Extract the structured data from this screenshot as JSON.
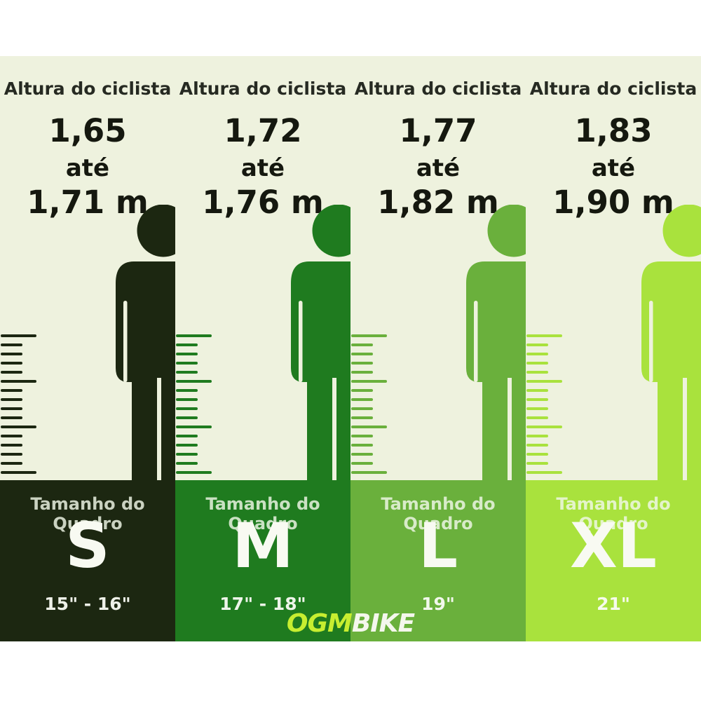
{
  "colors": {
    "page_bg": "#ffffff",
    "content_bg": "#eef2de",
    "logo_ogm": "#c7ee30",
    "logo_bike": "#f4f7ec"
  },
  "columns": [
    {
      "rider_label": "Altura do ciclista",
      "height_from": "1,65",
      "until_word": "até",
      "height_to": "1,71 m",
      "frame_label": "Tamanho do Quadro",
      "size": "S",
      "inches": "15\" - 16\"",
      "color": "#1c2711"
    },
    {
      "rider_label": "Altura do ciclista",
      "height_from": "1,72",
      "until_word": "até",
      "height_to": "1,76 m",
      "frame_label": "Tamanho do Quadro",
      "size": "M",
      "inches": "17\" - 18\"",
      "color": "#1f7b1f"
    },
    {
      "rider_label": "Altura do ciclista",
      "height_from": "1,77",
      "until_word": "até",
      "height_to": "1,82 m",
      "frame_label": "Tamanho do Quadro",
      "size": "L",
      "inches": "19\"",
      "color": "#6ab03c"
    },
    {
      "rider_label": "Altura do ciclista",
      "height_from": "1,83",
      "until_word": "até",
      "height_to": "1,90 m",
      "frame_label": "Tamanho do Quadro",
      "size": "XL",
      "inches": "21\"",
      "color": "#a9e23d"
    }
  ],
  "logo": {
    "ogm": "OGM",
    "bike": "BIKE"
  }
}
